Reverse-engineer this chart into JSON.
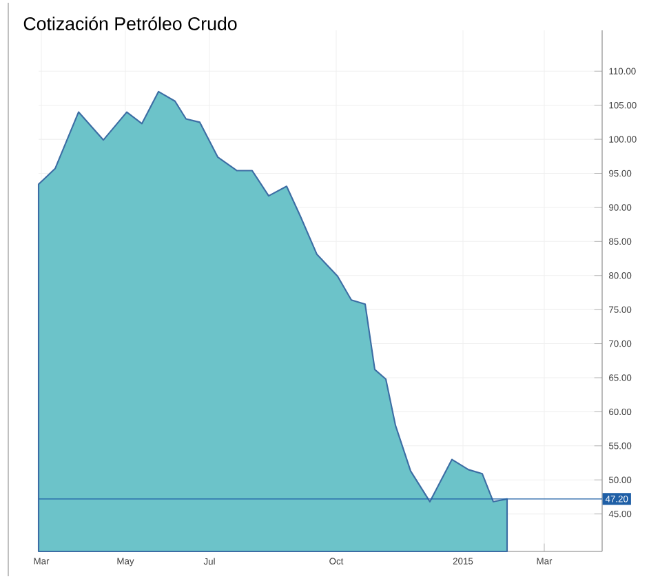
{
  "chart_data": {
    "type": "area",
    "title": "Cotización Petróleo Crudo",
    "x": [
      "2014-02-27",
      "2014-03-11",
      "2014-03-28",
      "2014-04-15",
      "2014-05-02",
      "2014-05-13",
      "2014-05-25",
      "2014-06-06",
      "2014-06-14",
      "2014-06-24",
      "2014-07-07",
      "2014-07-21",
      "2014-08-01",
      "2014-08-13",
      "2014-08-26",
      "2014-09-05",
      "2014-09-17",
      "2014-10-02",
      "2014-10-12",
      "2014-10-22",
      "2014-10-29",
      "2014-11-06",
      "2014-11-13",
      "2014-11-24",
      "2014-12-08",
      "2014-12-24",
      "2015-01-05",
      "2015-01-15",
      "2015-01-23",
      "2015-02-02"
    ],
    "values": [
      93.4,
      95.7,
      104,
      99.9,
      104,
      102.3,
      107,
      105.6,
      103,
      102.5,
      97.4,
      95.4,
      95.4,
      91.7,
      93.1,
      88.7,
      83.1,
      79.9,
      76.4,
      75.8,
      66.2,
      64.8,
      58,
      51.3,
      46.8,
      53,
      51.5,
      50.9,
      46.8,
      47.2
    ],
    "color": "#6cc3c9",
    "xlim": [
      "2014-02-27",
      "2015-04-12"
    ],
    "xticks": [
      {
        "value": "2014-03-01",
        "label": "Mar"
      },
      {
        "value": "2014-05-01",
        "label": "May"
      },
      {
        "value": "2014-07-01",
        "label": "Jul"
      },
      {
        "value": "2014-10-01",
        "label": "Oct"
      },
      {
        "value": "2015-01-01",
        "label": "2015"
      },
      {
        "value": "2015-03-01",
        "label": "Mar"
      }
    ],
    "ylim": [
      39.5,
      116
    ],
    "yticks": [
      {
        "value": 45,
        "label": "45.00"
      },
      {
        "value": 50,
        "label": "50.00"
      },
      {
        "value": 55,
        "label": "55.00"
      },
      {
        "value": 60,
        "label": "60.00"
      },
      {
        "value": 65,
        "label": "65.00"
      },
      {
        "value": 70,
        "label": "70.00"
      },
      {
        "value": 75,
        "label": "75.00"
      },
      {
        "value": 80,
        "label": "80.00"
      },
      {
        "value": 85,
        "label": "85.00"
      },
      {
        "value": 90,
        "label": "90.00"
      },
      {
        "value": 95,
        "label": "95.00"
      },
      {
        "value": 100,
        "label": "100.00"
      },
      {
        "value": 105,
        "label": "105.00"
      },
      {
        "value": 110,
        "label": "110.00"
      }
    ],
    "ref_lines": [
      {
        "axis": "y",
        "value": 47.2,
        "label": "47.20",
        "color": "#1f5fa6"
      }
    ],
    "grid": true
  }
}
